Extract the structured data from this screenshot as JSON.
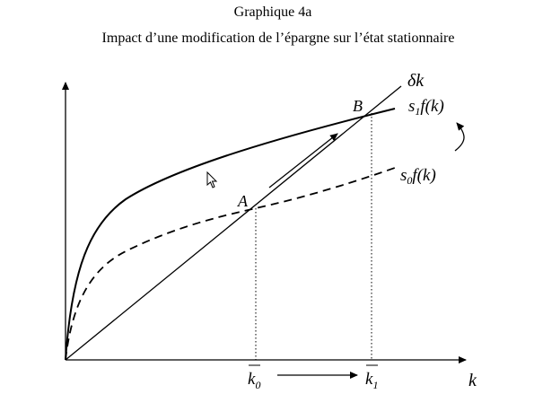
{
  "figure": {
    "title": "Graphique 4a",
    "subtitle": "Impact d’une modification de l’épargne sur l’état stationnaire"
  },
  "labels": {
    "x_axis": "k",
    "depreciation_line": "δk",
    "s1_curve": {
      "coef": "s",
      "sub": "1",
      "rest": "f(k)"
    },
    "s0_curve": {
      "coef": "s",
      "sub": "0",
      "rest": "f(k)"
    },
    "point_a": "A",
    "point_b": "B",
    "k0": {
      "base": "k",
      "sub": "0"
    },
    "k1": {
      "base": "k",
      "sub": "1"
    }
  },
  "icons": [
    "cursor-arrow-icon"
  ]
}
